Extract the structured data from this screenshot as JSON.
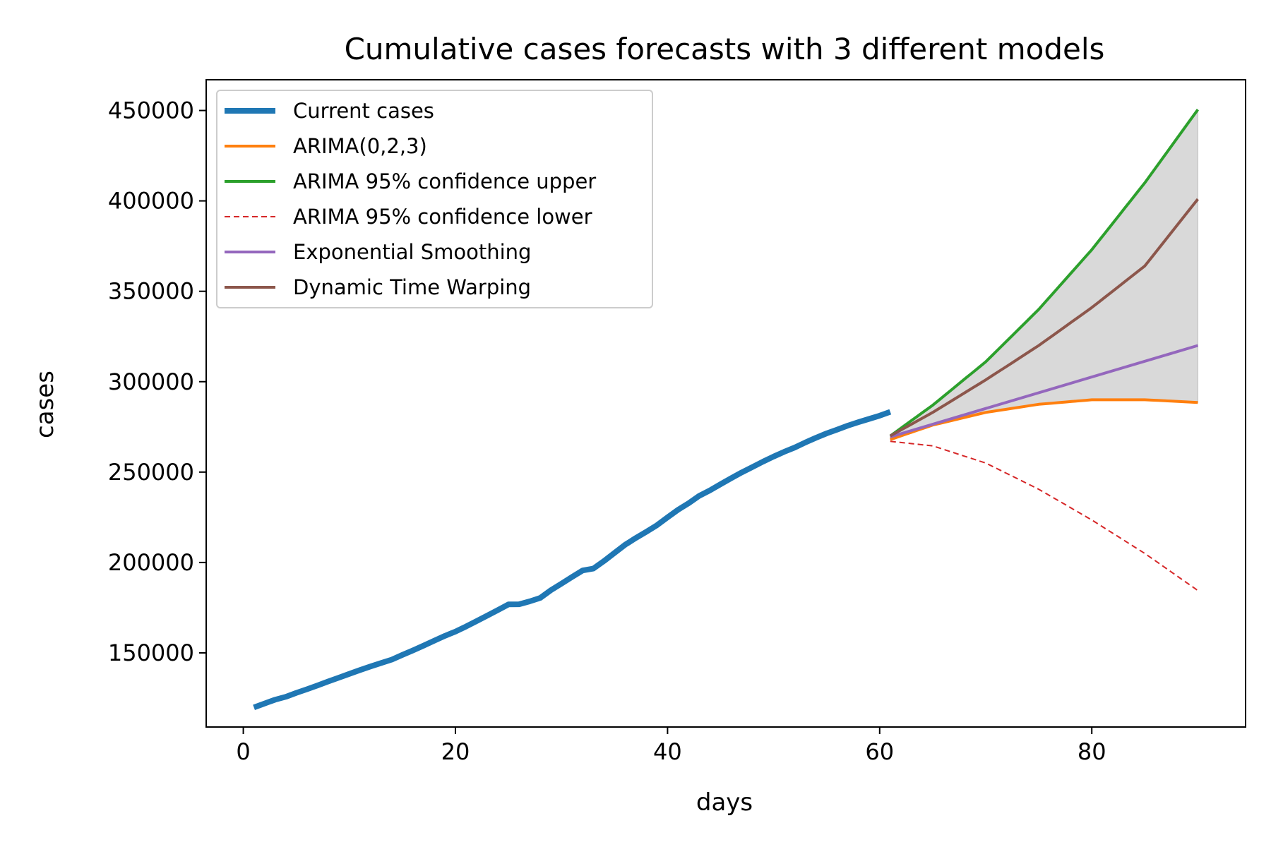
{
  "chart_data": {
    "type": "line",
    "title": "Cumulative cases forecasts with 3 different models",
    "xlabel": "days",
    "ylabel": "cases",
    "xlim": [
      -3.5,
      94.5
    ],
    "ylim": [
      109000,
      467000
    ],
    "xticks": [
      0,
      20,
      40,
      60,
      80
    ],
    "yticks": [
      150000,
      200000,
      250000,
      300000,
      350000,
      400000,
      450000
    ],
    "grid": false,
    "legend_position": "upper left",
    "shaded_band": {
      "between": [
        "ARIMA 95% confidence upper",
        "ARIMA(0,2,3)"
      ],
      "color": "#d9d9d9"
    },
    "series": [
      {
        "name": "Current cases",
        "color": "#1f77b4",
        "style": "solid",
        "width": "thick",
        "x": [
          1,
          2,
          3,
          4,
          5,
          6,
          7,
          8,
          9,
          10,
          11,
          12,
          13,
          14,
          15,
          16,
          17,
          18,
          19,
          20,
          21,
          22,
          23,
          24,
          25,
          26,
          27,
          28,
          29,
          30,
          31,
          32,
          33,
          34,
          35,
          36,
          37,
          38,
          39,
          40,
          41,
          42,
          43,
          44,
          45,
          46,
          47,
          48,
          49,
          50,
          51,
          52,
          53,
          54,
          55,
          56,
          57,
          58,
          59,
          60,
          61
        ],
        "y": [
          119800,
          122000,
          124100,
          125700,
          127900,
          129900,
          132000,
          134200,
          136300,
          138400,
          140500,
          142500,
          144400,
          146300,
          148900,
          151400,
          154000,
          156700,
          159400,
          161800,
          164600,
          167600,
          170600,
          173700,
          176800,
          176900,
          178500,
          180400,
          184700,
          188300,
          192000,
          195600,
          196600,
          200800,
          205300,
          209800,
          213500,
          217000,
          220600,
          225000,
          229200,
          232800,
          236900,
          239900,
          243300,
          246600,
          249800,
          252800,
          255800,
          258600,
          261200,
          263600,
          266400,
          269000,
          271400,
          273500,
          275700,
          277600,
          279400,
          281200,
          283300
        ]
      },
      {
        "name": "ARIMA(0,2,3)",
        "color": "#ff7f0e",
        "style": "solid",
        "x": [
          61,
          65,
          70,
          75,
          80,
          85,
          90
        ],
        "y": [
          268000,
          276000,
          283000,
          287500,
          290000,
          290000,
          288500
        ]
      },
      {
        "name": "ARIMA 95% confidence upper",
        "color": "#2ca02c",
        "style": "solid",
        "x": [
          61,
          65,
          70,
          75,
          80,
          85,
          90
        ],
        "y": [
          270000,
          287000,
          311000,
          340000,
          373000,
          410000,
          450500
        ]
      },
      {
        "name": "ARIMA 95% confidence lower",
        "color": "#d62728",
        "style": "dashed",
        "x": [
          61,
          65,
          70,
          75,
          80,
          85,
          90
        ],
        "y": [
          267000,
          264500,
          255000,
          240500,
          223500,
          205000,
          184500
        ]
      },
      {
        "name": "Exponential Smoothing",
        "color": "#9467bd",
        "style": "solid",
        "x": [
          61,
          90
        ],
        "y": [
          269500,
          320000
        ]
      },
      {
        "name": "Dynamic Time Warping",
        "color": "#8c564b",
        "style": "solid",
        "x": [
          61,
          65,
          70,
          75,
          80,
          85,
          90
        ],
        "y": [
          270000,
          283000,
          301000,
          320000,
          341000,
          364000,
          401000
        ]
      }
    ]
  }
}
